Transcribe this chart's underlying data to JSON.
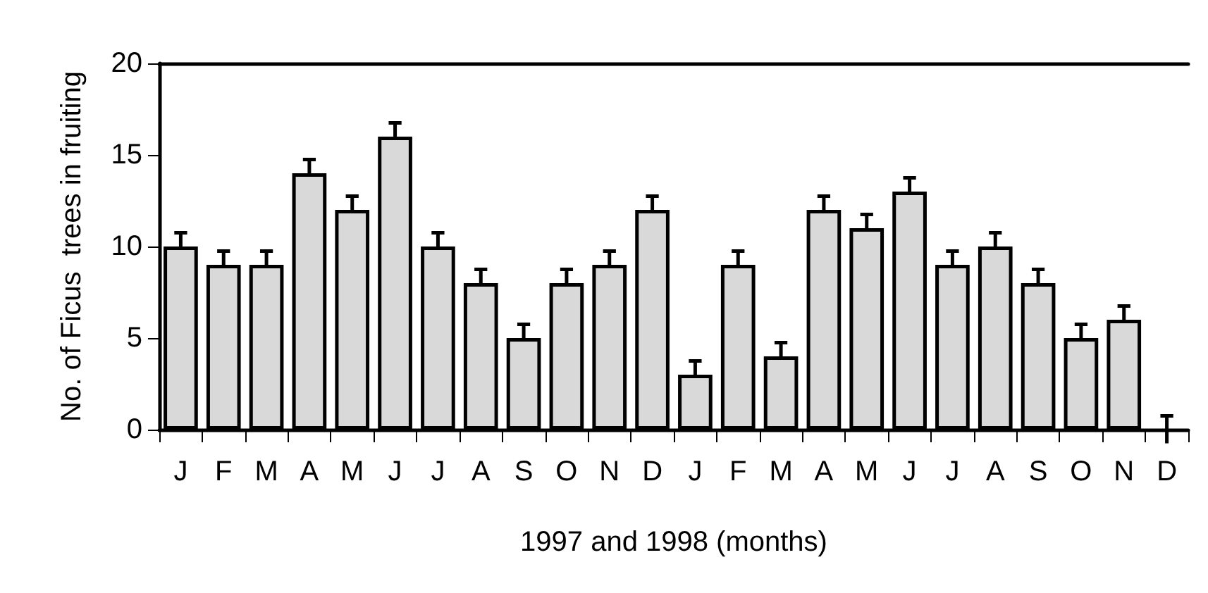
{
  "chart_data": {
    "type": "bar",
    "categories": [
      "J",
      "F",
      "M",
      "A",
      "M",
      "J",
      "J",
      "A",
      "S",
      "O",
      "N",
      "D",
      "J",
      "F",
      "M",
      "A",
      "M",
      "J",
      "J",
      "A",
      "S",
      "O",
      "N",
      "D"
    ],
    "values": [
      10,
      9,
      9,
      14,
      12,
      16,
      10,
      8,
      5,
      8,
      9,
      12,
      3,
      9,
      4,
      12,
      11,
      13,
      9,
      10,
      8,
      5,
      6,
      0
    ],
    "errors": [
      0.75,
      0.75,
      0.75,
      0.75,
      0.75,
      0.75,
      0.75,
      0.75,
      0.75,
      0.75,
      0.75,
      0.75,
      0.75,
      0.75,
      0.75,
      0.75,
      0.75,
      0.75,
      0.75,
      0.75,
      0.75,
      0.75,
      0.75,
      0.75
    ],
    "color": "#d9d9d9",
    "xlabel": "1997 and 1998 (months)",
    "ylabel": "No. of Ficus  trees in fruiting",
    "ylim": [
      0,
      20
    ],
    "yticks": [
      0,
      5,
      10,
      15,
      20
    ],
    "grid": false
  }
}
